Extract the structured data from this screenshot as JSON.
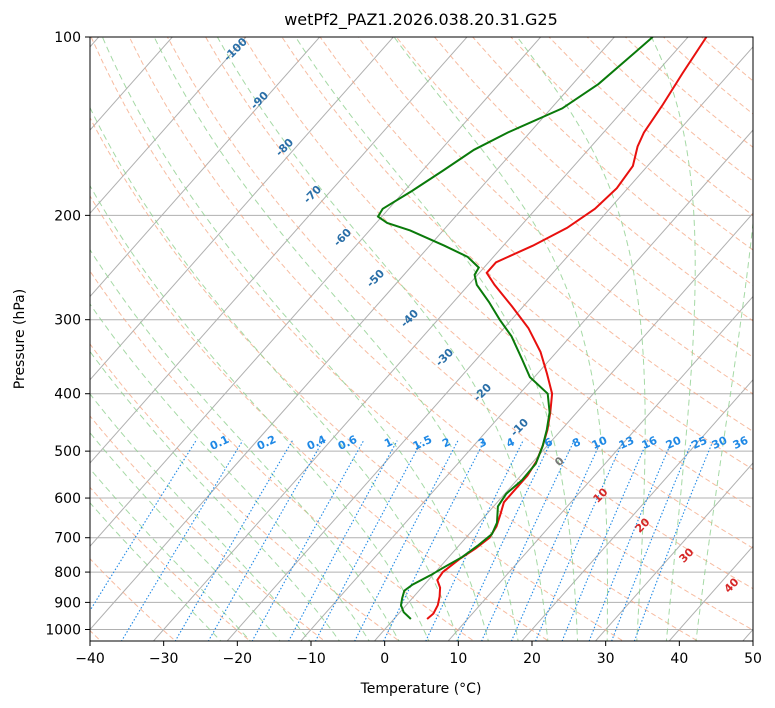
{
  "chart_data": {
    "type": "skew-t",
    "title": "wetPf2_PAZ1.2026.038.20.31.G25",
    "xlabel": "Temperature (°C)",
    "ylabel": "Pressure (hPa)",
    "xlim": [
      -40,
      50
    ],
    "ylim": [
      1050,
      100
    ],
    "xticks": [
      -40,
      -30,
      -20,
      -10,
      0,
      10,
      20,
      30,
      40,
      50
    ],
    "xtick_labels": [
      "−40",
      "−30",
      "−20",
      "−10",
      "0",
      "10",
      "20",
      "30",
      "40",
      "50"
    ],
    "yticks": [
      1000,
      900,
      800,
      700,
      600,
      500,
      400,
      300,
      200,
      100
    ],
    "ytick_labels": [
      "1000",
      "900",
      "800",
      "700",
      "600",
      "500",
      "400",
      "300",
      "200",
      "100"
    ],
    "series": [
      {
        "name": "temperature",
        "color": "#e8100e",
        "points": [
          {
            "p": 960,
            "t": 4.5
          },
          {
            "p": 940,
            "t": 4.7
          },
          {
            "p": 910,
            "t": 4.3
          },
          {
            "p": 880,
            "t": 3.5
          },
          {
            "p": 850,
            "t": 2.5
          },
          {
            "p": 825,
            "t": 1.2
          },
          {
            "p": 800,
            "t": 1.0
          },
          {
            "p": 760,
            "t": 1.7
          },
          {
            "p": 730,
            "t": 2.6
          },
          {
            "p": 700,
            "t": 3.2
          },
          {
            "p": 670,
            "t": 2.8
          },
          {
            "p": 640,
            "t": 1.9
          },
          {
            "p": 610,
            "t": 0.9
          },
          {
            "p": 580,
            "t": 0.9
          },
          {
            "p": 550,
            "t": 0.9
          },
          {
            "p": 520,
            "t": 0.4
          },
          {
            "p": 490,
            "t": -0.6
          },
          {
            "p": 460,
            "t": -1.9
          },
          {
            "p": 430,
            "t": -3.6
          },
          {
            "p": 400,
            "t": -5.6
          },
          {
            "p": 370,
            "t": -8.7
          },
          {
            "p": 340,
            "t": -12.2
          },
          {
            "p": 310,
            "t": -16.7
          },
          {
            "p": 285,
            "t": -21.5
          },
          {
            "p": 262,
            "t": -26.5
          },
          {
            "p": 250,
            "t": -29.0
          },
          {
            "p": 240,
            "t": -29.0
          },
          {
            "p": 225,
            "t": -26.0
          },
          {
            "p": 210,
            "t": -23.5
          },
          {
            "p": 195,
            "t": -22.0
          },
          {
            "p": 180,
            "t": -21.5
          },
          {
            "p": 165,
            "t": -22.0
          },
          {
            "p": 153,
            "t": -23.7
          },
          {
            "p": 145,
            "t": -24.5
          },
          {
            "p": 130,
            "t": -25.3
          },
          {
            "p": 115,
            "t": -26.4
          },
          {
            "p": 100,
            "t": -27.5
          }
        ]
      },
      {
        "name": "dewpoint",
        "color": "#0a7a0a",
        "points": [
          {
            "p": 960,
            "t": 2.3
          },
          {
            "p": 935,
            "t": 0.5
          },
          {
            "p": 910,
            "t": -0.7
          },
          {
            "p": 885,
            "t": -1.4
          },
          {
            "p": 860,
            "t": -2.0
          },
          {
            "p": 840,
            "t": -1.6
          },
          {
            "p": 810,
            "t": -0.3
          },
          {
            "p": 785,
            "t": 0.6
          },
          {
            "p": 755,
            "t": 1.8
          },
          {
            "p": 720,
            "t": 2.6
          },
          {
            "p": 690,
            "t": 3.1
          },
          {
            "p": 660,
            "t": 2.4
          },
          {
            "p": 620,
            "t": 0.6
          },
          {
            "p": 590,
            "t": 0.2
          },
          {
            "p": 560,
            "t": 0.7
          },
          {
            "p": 525,
            "t": 0.6
          },
          {
            "p": 490,
            "t": -0.6
          },
          {
            "p": 460,
            "t": -2.0
          },
          {
            "p": 430,
            "t": -3.7
          },
          {
            "p": 400,
            "t": -6.2
          },
          {
            "p": 375,
            "t": -10.6
          },
          {
            "p": 350,
            "t": -13.8
          },
          {
            "p": 320,
            "t": -18.0
          },
          {
            "p": 300,
            "t": -21.6
          },
          {
            "p": 280,
            "t": -25.2
          },
          {
            "p": 262,
            "t": -28.9
          },
          {
            "p": 252,
            "t": -30.4
          },
          {
            "p": 245,
            "t": -30.7
          },
          {
            "p": 235,
            "t": -33.5
          },
          {
            "p": 225,
            "t": -38.0
          },
          {
            "p": 212,
            "t": -44.5
          },
          {
            "p": 206,
            "t": -48.5
          },
          {
            "p": 201,
            "t": -50.5
          },
          {
            "p": 195,
            "t": -50.8
          },
          {
            "p": 182,
            "t": -49.0
          },
          {
            "p": 168,
            "t": -47.2
          },
          {
            "p": 155,
            "t": -45.5
          },
          {
            "p": 145,
            "t": -43.0
          },
          {
            "p": 132,
            "t": -38.5
          },
          {
            "p": 120,
            "t": -36.5
          },
          {
            "p": 108,
            "t": -35.5
          },
          {
            "p": 100,
            "t": -34.8
          }
        ]
      }
    ],
    "mixing_ratio_labels": [
      "0.1",
      "0.2",
      "0.4",
      "0.6",
      "1",
      "1.5",
      "2",
      "3",
      "4",
      "6",
      "8",
      "10",
      "13",
      "16",
      "20",
      "25",
      "30",
      "36"
    ],
    "dry_adiabat_labels": [
      "-100",
      "-90",
      "-80",
      "-70",
      "-60",
      "-50",
      "-40",
      "-30",
      "-20",
      "-10"
    ],
    "moist_adiabat_labels": [
      "0",
      "10",
      "20",
      "30",
      "40"
    ],
    "grid": true
  },
  "colors": {
    "temperature": "#e8100e",
    "dewpoint": "#0a7a0a",
    "dry_adiabat": "#f4a582",
    "moist_adiabat": "#8fcf8f",
    "mixing_ratio": "#1e88e5",
    "isotherm": "#888888"
  }
}
